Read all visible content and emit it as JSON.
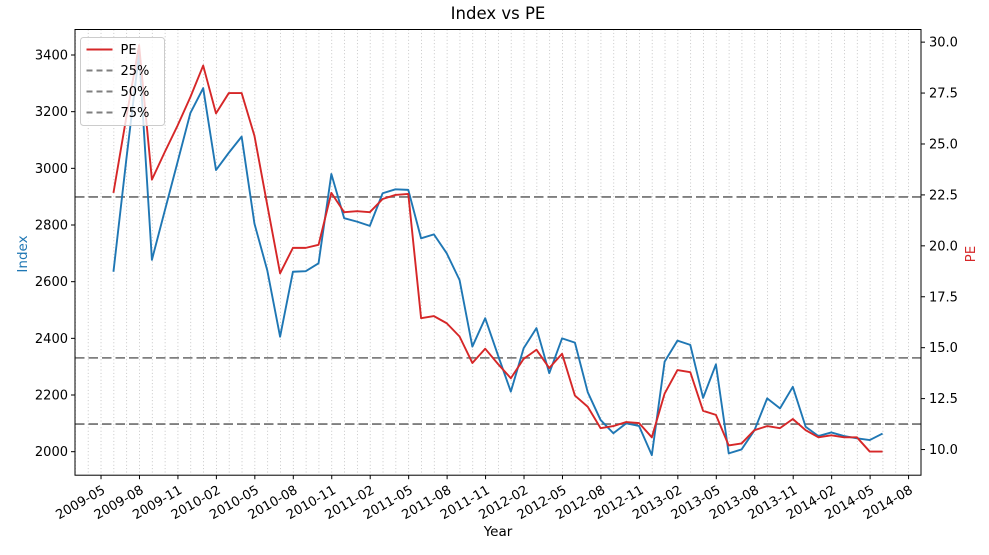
{
  "title": "Index vs PE",
  "xlabel": "Year",
  "left_axis": {
    "label": "Index",
    "color": "#1f77b4",
    "tick_labels": [
      "2000",
      "2200",
      "2400",
      "2600",
      "2800",
      "3000",
      "3200",
      "3400"
    ],
    "tick_values": [
      2000,
      2200,
      2400,
      2600,
      2800,
      3000,
      3200,
      3400
    ],
    "range": [
      1917,
      3490
    ]
  },
  "right_axis": {
    "label": "PE",
    "color": "#d62728",
    "tick_labels": [
      "10.0",
      "12.5",
      "15.0",
      "17.5",
      "20.0",
      "22.5",
      "25.0",
      "27.5",
      "30.0"
    ],
    "tick_values": [
      10,
      12.5,
      15,
      17.5,
      20,
      22.5,
      25,
      27.5,
      30
    ],
    "range": [
      8.74,
      30.62
    ]
  },
  "legend": {
    "position": "top-left",
    "items": [
      {
        "label": "PE",
        "style": "solid",
        "color": "#d62728"
      },
      {
        "label": "25%",
        "style": "dashed",
        "color": "#7f7f7f"
      },
      {
        "label": "50%",
        "style": "dashed",
        "color": "#7f7f7f"
      },
      {
        "label": "75%",
        "style": "dashed",
        "color": "#7f7f7f"
      }
    ]
  },
  "colors": {
    "index_line": "#1f77b4",
    "pe_line": "#d62728",
    "quantile_line": "#7f7f7f",
    "gridline": "#bababa",
    "spine": "#000000"
  },
  "chart_data": {
    "type": "line",
    "title": "Index vs PE",
    "xlabel": "Year",
    "x_start_month": "2009-05",
    "x": [
      "2009-05",
      "2009-06",
      "2009-07",
      "2009-08",
      "2009-09",
      "2009-10",
      "2009-11",
      "2009-12",
      "2010-01",
      "2010-02",
      "2010-03",
      "2010-04",
      "2010-05",
      "2010-06",
      "2010-07",
      "2010-08",
      "2010-09",
      "2010-10",
      "2010-11",
      "2010-12",
      "2011-01",
      "2011-02",
      "2011-03",
      "2011-04",
      "2011-05",
      "2011-06",
      "2011-07",
      "2011-08",
      "2011-09",
      "2011-10",
      "2011-11",
      "2011-12",
      "2012-01",
      "2012-02",
      "2012-03",
      "2012-04",
      "2012-05",
      "2012-06",
      "2012-07",
      "2012-08",
      "2012-09",
      "2012-10",
      "2012-11",
      "2012-12",
      "2013-01",
      "2013-02",
      "2013-03",
      "2013-04",
      "2013-05",
      "2013-06",
      "2013-07",
      "2013-08",
      "2013-09",
      "2013-10",
      "2013-11",
      "2013-12",
      "2014-01",
      "2014-02",
      "2014-03",
      "2014-04",
      "2014-05"
    ],
    "series": [
      {
        "name": "Index",
        "axis": "left",
        "color": "#1f77b4",
        "values": [
          2635,
          3030,
          3406,
          2677,
          2850,
          3022,
          3195,
          3283,
          2994,
          3055,
          3112,
          2805,
          2640,
          2406,
          2635,
          2637,
          2665,
          2980,
          2824,
          2812,
          2797,
          2912,
          2926,
          2924,
          2753,
          2767,
          2700,
          2606,
          2371,
          2471,
          2340,
          2212,
          2365,
          2436,
          2277,
          2400,
          2385,
          2210,
          2112,
          2065,
          2100,
          2091,
          1988,
          2318,
          2392,
          2377,
          2190,
          2308,
          1994,
          2008,
          2075,
          2188,
          2153,
          2229,
          2088,
          2055,
          2068,
          2055,
          2047,
          2041,
          2064
        ]
      },
      {
        "name": "PE",
        "axis": "right",
        "color": "#d62728",
        "values": [
          22.6,
          26.3,
          29.85,
          23.25,
          24.6,
          25.9,
          27.3,
          28.85,
          26.5,
          27.5,
          27.5,
          25.4,
          22.0,
          18.65,
          19.9,
          19.9,
          20.05,
          22.6,
          21.65,
          21.7,
          21.65,
          22.3,
          22.5,
          22.55,
          16.45,
          16.55,
          16.2,
          15.55,
          14.25,
          14.95,
          14.2,
          13.5,
          14.45,
          14.9,
          14.0,
          14.7,
          12.65,
          12.1,
          11.05,
          11.15,
          11.35,
          11.3,
          10.6,
          12.75,
          13.9,
          13.8,
          11.9,
          11.7,
          10.2,
          10.3,
          10.95,
          11.15,
          11.05,
          11.5,
          10.95,
          10.6,
          10.7,
          10.6,
          10.6,
          9.9,
          9.9
        ]
      }
    ],
    "quantile_lines": [
      {
        "label": "25%",
        "value": 11.25,
        "axis": "right"
      },
      {
        "label": "50%",
        "value": 14.5,
        "axis": "right"
      },
      {
        "label": "75%",
        "value": 22.4,
        "axis": "right"
      }
    ],
    "x_tick_labels": [
      "2009-05",
      "2009-08",
      "2009-11",
      "2010-02",
      "2010-05",
      "2010-08",
      "2010-11",
      "2011-02",
      "2011-05",
      "2011-08",
      "2011-11",
      "2012-02",
      "2012-05",
      "2012-08",
      "2012-11",
      "2013-02",
      "2013-05",
      "2013-08",
      "2013-11",
      "2014-02",
      "2014-05",
      "2014-08"
    ],
    "x_tick_rotation_deg": 30,
    "ylim_left": [
      1917,
      3490
    ],
    "ylim_right": [
      8.74,
      30.62
    ],
    "xlim_months": [
      -2.03,
      63.97
    ],
    "grid": "vertical dotted, every month",
    "legend_position": "upper left"
  }
}
